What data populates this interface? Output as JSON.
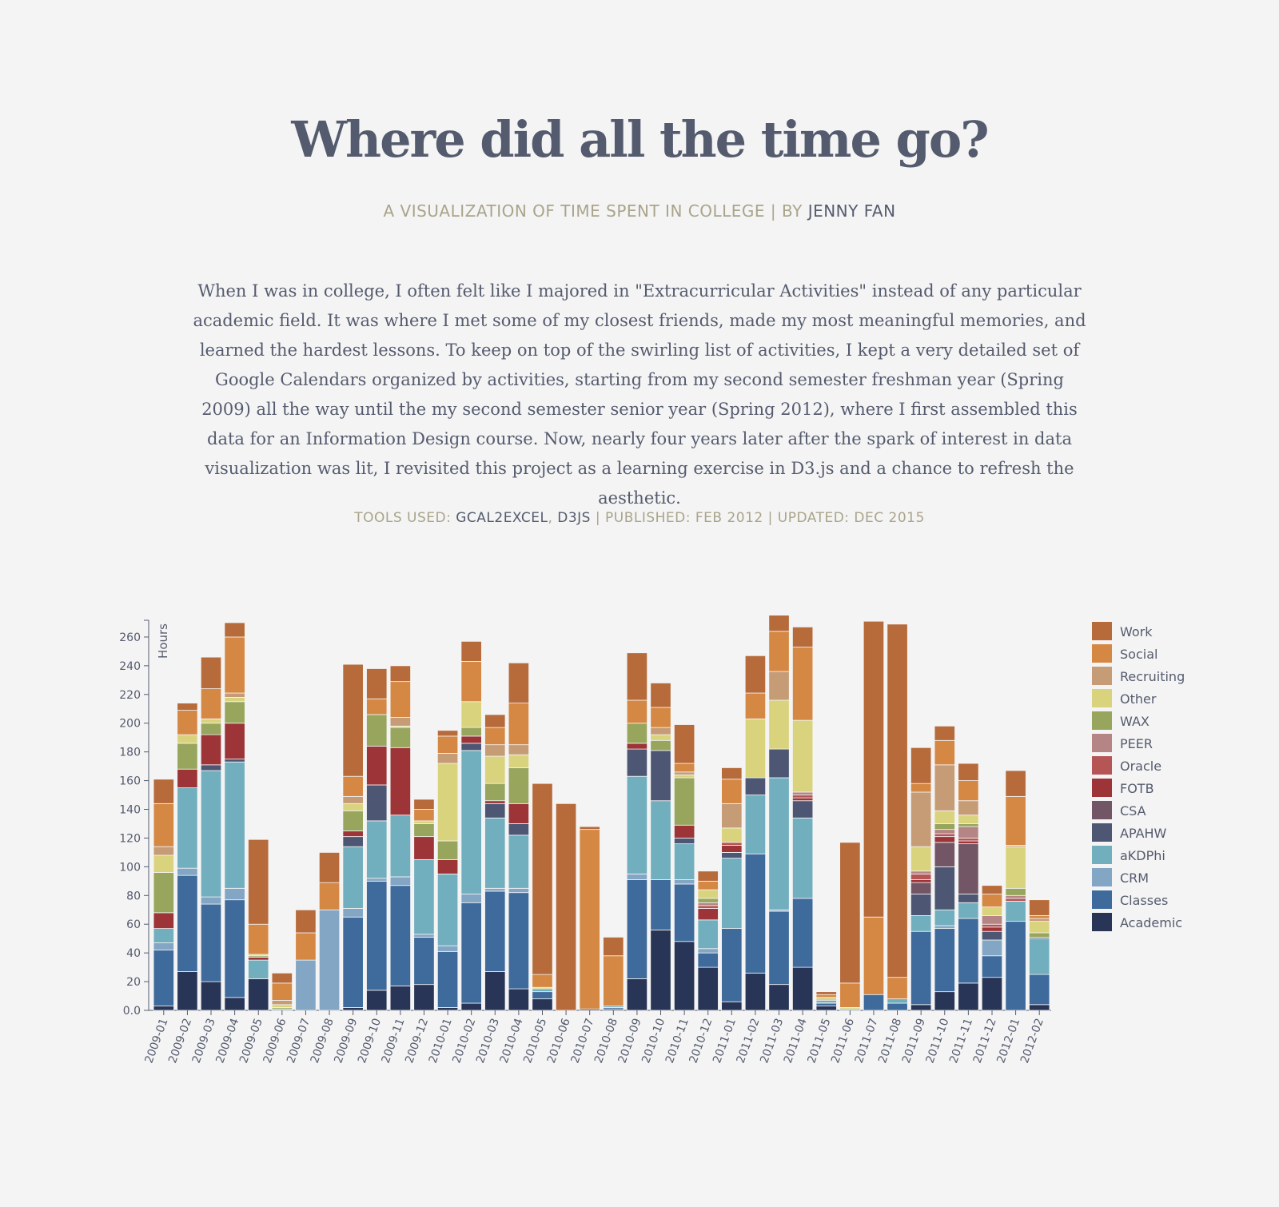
{
  "header": {
    "title": "Where did all the time go?",
    "subtitle_prefix": "A VISUALIZATION OF TIME SPENT IN COLLEGE | BY ",
    "author": "JENNY FAN"
  },
  "intro": "When I was in college, I often felt like I majored in \"Extracurricular Activities\" instead of any particular academic field. It was where I met some of my closest friends, made my most meaningful memories, and learned the hardest lessons. To keep on top of the swirling list of activities, I kept a very detailed set of Google Calendars organized by activities, starting from my second semester freshman year (Spring 2009) all the way until the my second semester senior year (Spring 2012), where I first assembled this data for an Information Design course. Now, nearly four years later after the spark of interest in data visualization was lit, I revisited this project as a learning exercise in D3.js and a chance to refresh the aesthetic.",
  "meta": {
    "tools_label": "TOOLS USED: ",
    "tool1": "GCAL2EXCEL",
    "sep": ", ",
    "tool2": "D3JS",
    "published": " | PUBLISHED: FEB 2012 | UPDATED: DEC 2015"
  },
  "chart_data": {
    "type": "bar",
    "stacked": true,
    "ylabel": "Hours",
    "ylim": [
      0,
      275
    ],
    "yticks": [
      0,
      20,
      40,
      60,
      80,
      100,
      120,
      140,
      160,
      180,
      200,
      220,
      240,
      260
    ],
    "ytick_labels": [
      "0.0",
      "20",
      "40",
      "60",
      "80",
      "100",
      "120",
      "140",
      "160",
      "180",
      "200",
      "220",
      "240",
      "260"
    ],
    "legend_position": "right",
    "categories": [
      "2009-01",
      "2009-02",
      "2009-03",
      "2009-04",
      "2009-05",
      "2009-06",
      "2009-07",
      "2009-08",
      "2009-09",
      "2009-10",
      "2009-11",
      "2009-12",
      "2010-01",
      "2010-02",
      "2010-03",
      "2010-04",
      "2010-05",
      "2010-06",
      "2010-07",
      "2010-08",
      "2010-09",
      "2010-10",
      "2010-11",
      "2010-12",
      "2011-01",
      "2011-02",
      "2011-03",
      "2011-04",
      "2011-05",
      "2011-06",
      "2011-07",
      "2011-08",
      "2011-09",
      "2011-10",
      "2011-11",
      "2011-12",
      "2012-01",
      "2012-02"
    ],
    "series": [
      {
        "name": "Academic",
        "color": "#283556",
        "values": [
          3,
          27,
          20,
          9,
          22,
          0,
          0,
          0,
          2,
          14,
          17,
          18,
          2,
          5,
          27,
          15,
          8,
          0,
          1,
          1,
          22,
          56,
          48,
          30,
          6,
          26,
          18,
          30,
          3,
          0,
          0,
          0,
          4,
          13,
          19,
          23,
          0,
          4
        ]
      },
      {
        "name": "Classes",
        "color": "#3e6a9c",
        "values": [
          39,
          67,
          54,
          68,
          0,
          0,
          0,
          0,
          63,
          76,
          70,
          33,
          39,
          70,
          56,
          67,
          5,
          0,
          0,
          1,
          69,
          35,
          40,
          10,
          51,
          83,
          51,
          48,
          2,
          0,
          11,
          5,
          51,
          44,
          45,
          15,
          62,
          21
        ]
      },
      {
        "name": "CRM",
        "color": "#83a6c4",
        "values": [
          5,
          5,
          5,
          8,
          0,
          1,
          35,
          70,
          6,
          2,
          6,
          2,
          4,
          6,
          2,
          3,
          0,
          0,
          0,
          0,
          4,
          0,
          3,
          3,
          0,
          0,
          1,
          0,
          0,
          0,
          0,
          0,
          0,
          2,
          0,
          11,
          0,
          0
        ]
      },
      {
        "name": "aKDPhi",
        "color": "#72afbe",
        "values": [
          10,
          56,
          88,
          88,
          13,
          0,
          0,
          0,
          43,
          40,
          43,
          52,
          50,
          100,
          49,
          37,
          2,
          0,
          0,
          1,
          68,
          55,
          25,
          20,
          49,
          41,
          92,
          56,
          1,
          1,
          0,
          3,
          11,
          11,
          11,
          0,
          14,
          25
        ]
      },
      {
        "name": "APAHW",
        "color": "#4d5774",
        "values": [
          0,
          0,
          4,
          2,
          0,
          0,
          0,
          0,
          7,
          25,
          0,
          0,
          0,
          5,
          10,
          8,
          0,
          0,
          0,
          0,
          19,
          35,
          4,
          0,
          4,
          12,
          20,
          12,
          1,
          0,
          0,
          0,
          15,
          30,
          6,
          6,
          0,
          1
        ]
      },
      {
        "name": "CSA",
        "color": "#725666",
        "values": [
          0,
          0,
          0,
          0,
          0,
          0,
          0,
          0,
          0,
          0,
          0,
          0,
          0,
          0,
          0,
          0,
          0,
          0,
          0,
          0,
          0,
          0,
          0,
          0,
          0,
          0,
          0,
          0,
          0,
          0,
          0,
          0,
          8,
          17,
          35,
          0,
          0,
          0
        ]
      },
      {
        "name": "FOTB",
        "color": "#9c3438",
        "values": [
          11,
          13,
          21,
          25,
          2,
          0,
          0,
          0,
          4,
          27,
          47,
          16,
          10,
          5,
          2,
          14,
          0,
          0,
          0,
          0,
          4,
          0,
          9,
          8,
          5,
          0,
          0,
          2,
          0,
          0,
          0,
          0,
          2,
          4,
          2,
          3,
          0,
          0
        ]
      },
      {
        "name": "Oracle",
        "color": "#b65555",
        "values": [
          0,
          0,
          0,
          0,
          0,
          0,
          0,
          0,
          0,
          0,
          0,
          0,
          0,
          0,
          0,
          0,
          0,
          0,
          0,
          0,
          0,
          0,
          0,
          2,
          2,
          0,
          0,
          2,
          0,
          0,
          0,
          0,
          4,
          2,
          2,
          2,
          2,
          0
        ]
      },
      {
        "name": "PEER",
        "color": "#b58484",
        "values": [
          0,
          0,
          0,
          0,
          0,
          0,
          0,
          0,
          0,
          0,
          0,
          0,
          0,
          0,
          0,
          0,
          0,
          0,
          0,
          0,
          0,
          0,
          0,
          2,
          0,
          0,
          0,
          2,
          0,
          0,
          0,
          0,
          2,
          3,
          8,
          6,
          2,
          0
        ]
      },
      {
        "name": "WAX",
        "color": "#97a65c",
        "values": [
          28,
          18,
          8,
          15,
          1,
          1,
          0,
          0,
          14,
          22,
          14,
          9,
          13,
          6,
          12,
          25,
          0,
          0,
          0,
          0,
          14,
          7,
          33,
          3,
          0,
          0,
          0,
          0,
          0,
          0,
          0,
          0,
          0,
          4,
          2,
          0,
          5,
          3
        ]
      },
      {
        "name": "Other",
        "color": "#dad37e",
        "values": [
          12,
          6,
          3,
          3,
          1,
          2,
          0,
          0,
          5,
          0,
          1,
          2,
          54,
          18,
          19,
          9,
          1,
          0,
          0,
          0,
          0,
          4,
          2,
          6,
          10,
          41,
          34,
          50,
          2,
          1,
          0,
          0,
          17,
          9,
          6,
          6,
          29,
          8
        ]
      },
      {
        "name": "Recruiting",
        "color": "#c69c77",
        "values": [
          6,
          0,
          0,
          3,
          0,
          3,
          0,
          0,
          5,
          0,
          6,
          0,
          7,
          0,
          8,
          7,
          0,
          0,
          0,
          0,
          0,
          5,
          2,
          0,
          17,
          0,
          20,
          0,
          0,
          0,
          0,
          0,
          38,
          32,
          10,
          0,
          1,
          2
        ]
      },
      {
        "name": "Social",
        "color": "#d58843",
        "values": [
          30,
          17,
          21,
          39,
          21,
          12,
          19,
          19,
          14,
          11,
          25,
          8,
          12,
          28,
          12,
          29,
          9,
          0,
          125,
          35,
          16,
          14,
          6,
          6,
          17,
          18,
          28,
          51,
          2,
          17,
          54,
          15,
          6,
          17,
          14,
          9,
          34,
          2
        ]
      },
      {
        "name": "Work",
        "color": "#b76a3a",
        "values": [
          17,
          5,
          22,
          10,
          59,
          7,
          16,
          21,
          78,
          21,
          11,
          7,
          4,
          14,
          9,
          28,
          133,
          144,
          2,
          13,
          33,
          17,
          27,
          7,
          8,
          26,
          12,
          14,
          2,
          98,
          206,
          246,
          25,
          10,
          12,
          6,
          18,
          11
        ]
      }
    ]
  }
}
